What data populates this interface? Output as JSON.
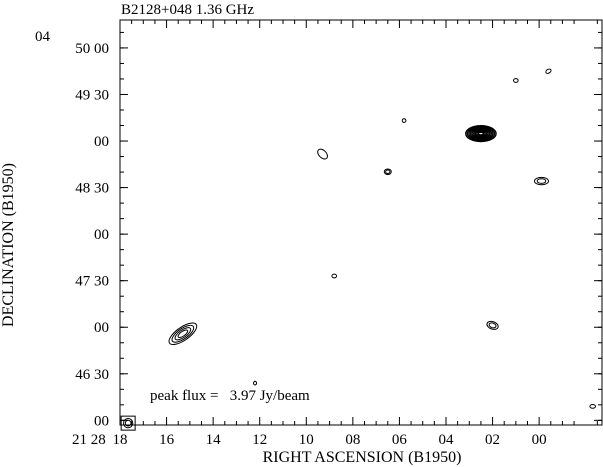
{
  "chart_data": {
    "type": "contour",
    "title": "B2128+048  1.36 GHz",
    "xlabel": "RIGHT ASCENSION (B1950)",
    "ylabel": "DECLINATION (B1950)",
    "annotation": "peak flux =   3.97 Jy/beam",
    "x_hour_prefix": "21 28",
    "y_deg_prefix": "04",
    "xlim_sec": [
      18,
      -2.7
    ],
    "ylim_arcmin": [
      45.95,
      50.3
    ],
    "x_ticks": [
      {
        "value": 18,
        "label": "18"
      },
      {
        "value": 16,
        "label": "16"
      },
      {
        "value": 14,
        "label": "14"
      },
      {
        "value": 12,
        "label": "12"
      },
      {
        "value": 10,
        "label": "10"
      },
      {
        "value": 8,
        "label": "08"
      },
      {
        "value": 6,
        "label": "06"
      },
      {
        "value": 4,
        "label": "04"
      },
      {
        "value": 2,
        "label": "02"
      },
      {
        "value": 0,
        "label": "00"
      }
    ],
    "y_ticks": [
      {
        "value": 50.0,
        "label": "50 00"
      },
      {
        "value": 49.5,
        "label": "49 30"
      },
      {
        "value": 49.0,
        "label": "00"
      },
      {
        "value": 48.5,
        "label": "48 30"
      },
      {
        "value": 48.0,
        "label": "00"
      },
      {
        "value": 47.5,
        "label": "47 30"
      },
      {
        "value": 47.0,
        "label": "00"
      },
      {
        "value": 46.5,
        "label": "46 30"
      },
      {
        "value": 46.0,
        "label": "00"
      }
    ],
    "sources": [
      {
        "name": "peak",
        "ra_sec": 2.5,
        "dec_arcmin": 49.08,
        "levels": 9,
        "major_sec": 0.65,
        "minor_arcmin": 0.085,
        "pa": 0
      },
      {
        "name": "sw-extended",
        "ra_sec": 15.3,
        "dec_arcmin": 46.93,
        "levels": 4,
        "major_sec": 0.7,
        "minor_arcmin": 0.07,
        "pa": -35
      },
      {
        "name": "s1",
        "ra_sec": 9.3,
        "dec_arcmin": 48.86,
        "levels": 1,
        "major_sec": 0.25,
        "minor_arcmin": 0.04,
        "pa": 45
      },
      {
        "name": "s2",
        "ra_sec": 6.5,
        "dec_arcmin": 48.67,
        "levels": 2,
        "major_sec": 0.15,
        "minor_arcmin": 0.03,
        "pa": 0
      },
      {
        "name": "s3",
        "ra_sec": 5.8,
        "dec_arcmin": 49.22,
        "levels": 1,
        "major_sec": 0.08,
        "minor_arcmin": 0.02,
        "pa": 0
      },
      {
        "name": "s4",
        "ra_sec": -0.1,
        "dec_arcmin": 48.57,
        "levels": 2,
        "major_sec": 0.3,
        "minor_arcmin": 0.04,
        "pa": 0
      },
      {
        "name": "s5",
        "ra_sec": 1.0,
        "dec_arcmin": 49.65,
        "levels": 1,
        "major_sec": 0.1,
        "minor_arcmin": 0.02,
        "pa": 0
      },
      {
        "name": "s6",
        "ra_sec": -0.4,
        "dec_arcmin": 49.75,
        "levels": 1,
        "major_sec": 0.12,
        "minor_arcmin": 0.02,
        "pa": -30
      },
      {
        "name": "s7",
        "ra_sec": 8.8,
        "dec_arcmin": 47.55,
        "levels": 1,
        "major_sec": 0.1,
        "minor_arcmin": 0.02,
        "pa": 0
      },
      {
        "name": "s8",
        "ra_sec": 2.0,
        "dec_arcmin": 47.02,
        "levels": 2,
        "major_sec": 0.25,
        "minor_arcmin": 0.04,
        "pa": 20
      },
      {
        "name": "s9",
        "ra_sec": 12.2,
        "dec_arcmin": 46.4,
        "levels": 1,
        "major_sec": 0.04,
        "minor_arcmin": 0.02,
        "pa": 0
      },
      {
        "name": "s10",
        "ra_sec": -2.3,
        "dec_arcmin": 46.15,
        "levels": 1,
        "major_sec": 0.12,
        "minor_arcmin": 0.02,
        "pa": 0
      }
    ],
    "beam": {
      "ra_sec": 17.65,
      "dec_arcmin": 45.97,
      "levels": 2,
      "major_sec": 0.2,
      "minor_arcmin": 0.05
    }
  }
}
